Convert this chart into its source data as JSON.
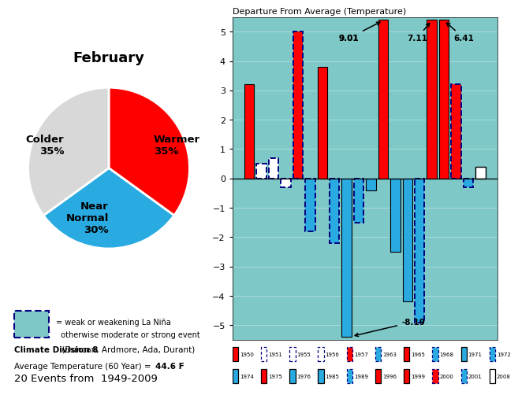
{
  "pie_title": "February",
  "pie_slices": [
    35,
    30,
    35
  ],
  "pie_labels": [
    "Warmer\n35%",
    "Near\nNormal\n30%",
    "Colder\n35%"
  ],
  "pie_colors": [
    "#ff0000",
    "#29abe2",
    "#d8d8d8"
  ],
  "bar_title": "Departure From Average (Temperature)",
  "bar_bg": "#7ec8c8",
  "bar_ylim": [
    -5.5,
    5.5
  ],
  "bar_yticks": [
    -5,
    -4,
    -3,
    -2,
    -1,
    0,
    1,
    2,
    3,
    4,
    5
  ],
  "red_color": "#ff0000",
  "blue_color": "#29abe2",
  "white_color": "#ffffff",
  "dark_blue": "#000080",
  "legend_note1": "= weak or weakening La Niña",
  "legend_note2": "  otherwise moderate or strong event",
  "climate_div_bold": "Climate Division 8",
  "climate_div_rest": " (Duncan, Ardmore, Ada, Durant)",
  "avg_temp_label": "Average Temperature (60 Year) =",
  "avg_temp_val": "44.6 F",
  "footer": "20 Events from  1949-2009",
  "bar_data": [
    [
      1950,
      3.2,
      false,
      "red"
    ],
    [
      1951,
      0.5,
      true,
      "white"
    ],
    [
      1955,
      0.7,
      true,
      "white"
    ],
    [
      1956,
      -0.3,
      true,
      "white"
    ],
    [
      1957,
      5.0,
      true,
      "red"
    ],
    [
      1963,
      -1.8,
      true,
      "blue"
    ],
    [
      1965,
      3.8,
      false,
      "red"
    ],
    [
      1968,
      -2.2,
      true,
      "blue"
    ],
    [
      1971,
      -8.19,
      false,
      "blue"
    ],
    [
      1972,
      -1.5,
      true,
      "blue"
    ],
    [
      1974,
      -0.4,
      false,
      "blue"
    ],
    [
      1975,
      9.01,
      false,
      "red"
    ],
    [
      1976,
      -2.5,
      false,
      "blue"
    ],
    [
      1985,
      -4.2,
      false,
      "blue"
    ],
    [
      1989,
      -4.9,
      true,
      "blue"
    ],
    [
      1996,
      7.11,
      false,
      "red"
    ],
    [
      1999,
      6.41,
      false,
      "red"
    ],
    [
      2000,
      3.2,
      true,
      "red"
    ],
    [
      2001,
      -0.3,
      true,
      "blue"
    ],
    [
      2008,
      0.4,
      false,
      "white"
    ]
  ],
  "legend_row1": [
    [
      1950,
      false,
      "red"
    ],
    [
      1951,
      true,
      "white"
    ],
    [
      1955,
      true,
      "white"
    ],
    [
      1956,
      true,
      "white"
    ],
    [
      1957,
      true,
      "red"
    ],
    [
      1963,
      true,
      "blue"
    ],
    [
      1965,
      false,
      "red"
    ],
    [
      1968,
      true,
      "blue"
    ],
    [
      1971,
      false,
      "blue"
    ],
    [
      1972,
      true,
      "blue"
    ]
  ],
  "legend_row2": [
    [
      1974,
      false,
      "blue"
    ],
    [
      1975,
      false,
      "red"
    ],
    [
      1976,
      false,
      "blue"
    ],
    [
      1985,
      false,
      "blue"
    ],
    [
      1989,
      true,
      "blue"
    ],
    [
      1996,
      false,
      "red"
    ],
    [
      1999,
      false,
      "red"
    ],
    [
      2000,
      true,
      "red"
    ],
    [
      2001,
      true,
      "blue"
    ],
    [
      2008,
      false,
      "white"
    ]
  ]
}
